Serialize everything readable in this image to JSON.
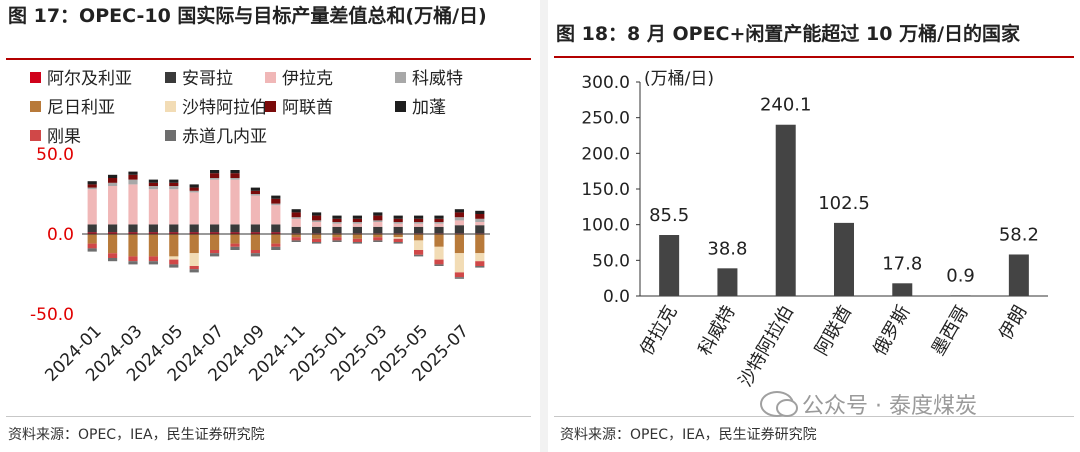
{
  "left": {
    "title": "图 17：OPEC-10 国实际与目标产量差值总和(万桶/日)",
    "source": "资料来源：OPEC，IEA，民生证券研究院"
  },
  "right": {
    "title": "图 18：8 月 OPEC+闲置产能超过 10 万桶/日的国家",
    "source": "资料来源：OPEC，IEA，民生证券研究院"
  },
  "watermark": "公众号 · 泰度煤炭",
  "chart_data": [
    {
      "type": "bar",
      "stacked": true,
      "title": "OPEC-10 国实际与目标产量差值总和(万桶/日)",
      "ylim": [
        -50,
        50
      ],
      "yticks": [
        "50.0",
        "0.0",
        "-50.0"
      ],
      "tick_values": [
        50,
        0,
        -50
      ],
      "xtick_labels": [
        "2024-01",
        "2024-03",
        "2024-05",
        "2024-07",
        "2024-09",
        "2024-11",
        "2025-01",
        "2025-03",
        "2025-05",
        "2025-07"
      ],
      "xtick_index": [
        0,
        2,
        4,
        6,
        8,
        10,
        12,
        14,
        16,
        18
      ],
      "categories": [
        "2024-01",
        "2024-02",
        "2024-03",
        "2024-04",
        "2024-05",
        "2024-06",
        "2024-07",
        "2024-08",
        "2024-09",
        "2024-10",
        "2024-11",
        "2024-12",
        "2025-01",
        "2025-02",
        "2025-03",
        "2025-04",
        "2025-05",
        "2025-06",
        "2025-07",
        "2025-08"
      ],
      "series": [
        {
          "name": "阿尔及利亚",
          "color": "#d0021b",
          "values": [
            1,
            1,
            1,
            1,
            1,
            1,
            1,
            1,
            1,
            1,
            0.5,
            0.5,
            0.5,
            0.5,
            0.5,
            0.5,
            0.5,
            0.5,
            0.5,
            0.5
          ]
        },
        {
          "name": "安哥拉",
          "color": "#3a3a3a",
          "values": [
            5,
            5,
            5,
            5,
            5,
            5,
            5,
            5,
            5,
            5,
            4,
            4,
            4,
            4,
            4,
            4,
            4,
            4,
            5,
            5
          ]
        },
        {
          "name": "伊拉克",
          "color": "#f0b7b7",
          "values": [
            22,
            24,
            25,
            22,
            22,
            20,
            28,
            28,
            18,
            12,
            5,
            3,
            2,
            2,
            3,
            2,
            2,
            2,
            3,
            2
          ]
        },
        {
          "name": "科威特",
          "color": "#a8a8a8",
          "values": [
            1,
            2,
            3,
            2,
            2,
            1,
            1,
            1,
            1,
            1,
            1,
            1,
            1,
            1,
            1,
            1,
            1,
            1,
            2,
            2
          ]
        },
        {
          "name": "尼日利亚",
          "color": "#b87a3a",
          "values": [
            -6,
            -12,
            -14,
            -14,
            -14,
            -12,
            -10,
            -6,
            -10,
            -6,
            -2,
            -3,
            -2,
            -3,
            -2,
            -2,
            -4,
            -8,
            -12,
            -12
          ]
        },
        {
          "name": "沙特阿拉伯",
          "color": "#f2dcb5",
          "values": [
            0,
            0,
            0,
            0,
            -2,
            -8,
            0,
            0,
            0,
            0,
            0,
            0,
            0,
            0,
            0,
            -1,
            -6,
            -8,
            -12,
            -5
          ]
        },
        {
          "name": "阿联酋",
          "color": "#7a0a0a",
          "values": [
            2,
            3,
            3,
            2,
            2,
            2,
            3,
            3,
            2,
            3,
            3,
            3,
            2,
            2,
            3,
            2,
            2,
            2,
            3,
            3
          ]
        },
        {
          "name": "加蓬",
          "color": "#1e1e1e",
          "values": [
            2,
            2,
            2,
            2,
            2,
            2,
            2,
            2,
            2,
            2,
            2,
            2,
            2,
            2,
            2,
            2,
            2,
            2,
            2,
            2
          ]
        },
        {
          "name": "刚果",
          "color": "#d04848",
          "values": [
            -3,
            -3,
            -3,
            -3,
            -3,
            -2,
            -2,
            -2,
            -2,
            -2,
            -2,
            -2,
            -2,
            -2,
            -2,
            -2,
            -3,
            -3,
            -3,
            -3
          ]
        },
        {
          "name": "赤道几内亚",
          "color": "#6e6e6e",
          "values": [
            -2,
            -2,
            -2,
            -2,
            -2,
            -2,
            -2,
            -2,
            -2,
            -2,
            -1,
            -1,
            -1,
            -1,
            -1,
            -1,
            -1,
            -1,
            -1,
            -1
          ]
        }
      ]
    },
    {
      "type": "bar",
      "title": "8 月 OPEC+闲置产能超过 10 万桶/日的国家",
      "ylabel": "(万桶/日)",
      "ylim": [
        0,
        300
      ],
      "yticks": [
        "0.0",
        "50.0",
        "100.0",
        "150.0",
        "200.0",
        "250.0",
        "300.0"
      ],
      "tick_values": [
        0,
        50,
        100,
        150,
        200,
        250,
        300
      ],
      "categories": [
        "伊拉克",
        "科威特",
        "沙特阿拉伯",
        "阿联酋",
        "俄罗斯",
        "墨西哥",
        "伊朗"
      ],
      "values": [
        85.5,
        38.8,
        240.1,
        102.5,
        17.8,
        0.9,
        58.2
      ],
      "value_labels": [
        "85.5",
        "38.8",
        "240.1",
        "102.5",
        "17.8",
        "0.9",
        "58.2"
      ],
      "color": "#444444"
    }
  ]
}
